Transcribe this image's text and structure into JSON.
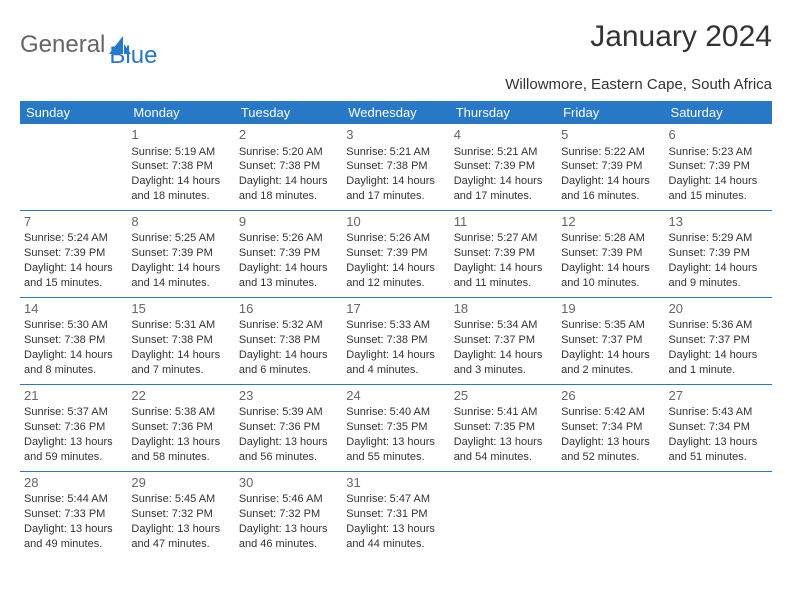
{
  "brand": {
    "part1": "General",
    "part2": "Blue"
  },
  "title": "January 2024",
  "location": "Willowmore, Eastern Cape, South Africa",
  "colors": {
    "accent": "#2878c8",
    "text": "#333333",
    "muted": "#666666"
  },
  "day_headers": [
    "Sunday",
    "Monday",
    "Tuesday",
    "Wednesday",
    "Thursday",
    "Friday",
    "Saturday"
  ],
  "weeks": [
    [
      null,
      {
        "d": "1",
        "sr": "Sunrise: 5:19 AM",
        "ss": "Sunset: 7:38 PM",
        "dl": "Daylight: 14 hours and 18 minutes."
      },
      {
        "d": "2",
        "sr": "Sunrise: 5:20 AM",
        "ss": "Sunset: 7:38 PM",
        "dl": "Daylight: 14 hours and 18 minutes."
      },
      {
        "d": "3",
        "sr": "Sunrise: 5:21 AM",
        "ss": "Sunset: 7:38 PM",
        "dl": "Daylight: 14 hours and 17 minutes."
      },
      {
        "d": "4",
        "sr": "Sunrise: 5:21 AM",
        "ss": "Sunset: 7:39 PM",
        "dl": "Daylight: 14 hours and 17 minutes."
      },
      {
        "d": "5",
        "sr": "Sunrise: 5:22 AM",
        "ss": "Sunset: 7:39 PM",
        "dl": "Daylight: 14 hours and 16 minutes."
      },
      {
        "d": "6",
        "sr": "Sunrise: 5:23 AM",
        "ss": "Sunset: 7:39 PM",
        "dl": "Daylight: 14 hours and 15 minutes."
      }
    ],
    [
      {
        "d": "7",
        "sr": "Sunrise: 5:24 AM",
        "ss": "Sunset: 7:39 PM",
        "dl": "Daylight: 14 hours and 15 minutes."
      },
      {
        "d": "8",
        "sr": "Sunrise: 5:25 AM",
        "ss": "Sunset: 7:39 PM",
        "dl": "Daylight: 14 hours and 14 minutes."
      },
      {
        "d": "9",
        "sr": "Sunrise: 5:26 AM",
        "ss": "Sunset: 7:39 PM",
        "dl": "Daylight: 14 hours and 13 minutes."
      },
      {
        "d": "10",
        "sr": "Sunrise: 5:26 AM",
        "ss": "Sunset: 7:39 PM",
        "dl": "Daylight: 14 hours and 12 minutes."
      },
      {
        "d": "11",
        "sr": "Sunrise: 5:27 AM",
        "ss": "Sunset: 7:39 PM",
        "dl": "Daylight: 14 hours and 11 minutes."
      },
      {
        "d": "12",
        "sr": "Sunrise: 5:28 AM",
        "ss": "Sunset: 7:39 PM",
        "dl": "Daylight: 14 hours and 10 minutes."
      },
      {
        "d": "13",
        "sr": "Sunrise: 5:29 AM",
        "ss": "Sunset: 7:39 PM",
        "dl": "Daylight: 14 hours and 9 minutes."
      }
    ],
    [
      {
        "d": "14",
        "sr": "Sunrise: 5:30 AM",
        "ss": "Sunset: 7:38 PM",
        "dl": "Daylight: 14 hours and 8 minutes."
      },
      {
        "d": "15",
        "sr": "Sunrise: 5:31 AM",
        "ss": "Sunset: 7:38 PM",
        "dl": "Daylight: 14 hours and 7 minutes."
      },
      {
        "d": "16",
        "sr": "Sunrise: 5:32 AM",
        "ss": "Sunset: 7:38 PM",
        "dl": "Daylight: 14 hours and 6 minutes."
      },
      {
        "d": "17",
        "sr": "Sunrise: 5:33 AM",
        "ss": "Sunset: 7:38 PM",
        "dl": "Daylight: 14 hours and 4 minutes."
      },
      {
        "d": "18",
        "sr": "Sunrise: 5:34 AM",
        "ss": "Sunset: 7:37 PM",
        "dl": "Daylight: 14 hours and 3 minutes."
      },
      {
        "d": "19",
        "sr": "Sunrise: 5:35 AM",
        "ss": "Sunset: 7:37 PM",
        "dl": "Daylight: 14 hours and 2 minutes."
      },
      {
        "d": "20",
        "sr": "Sunrise: 5:36 AM",
        "ss": "Sunset: 7:37 PM",
        "dl": "Daylight: 14 hours and 1 minute."
      }
    ],
    [
      {
        "d": "21",
        "sr": "Sunrise: 5:37 AM",
        "ss": "Sunset: 7:36 PM",
        "dl": "Daylight: 13 hours and 59 minutes."
      },
      {
        "d": "22",
        "sr": "Sunrise: 5:38 AM",
        "ss": "Sunset: 7:36 PM",
        "dl": "Daylight: 13 hours and 58 minutes."
      },
      {
        "d": "23",
        "sr": "Sunrise: 5:39 AM",
        "ss": "Sunset: 7:36 PM",
        "dl": "Daylight: 13 hours and 56 minutes."
      },
      {
        "d": "24",
        "sr": "Sunrise: 5:40 AM",
        "ss": "Sunset: 7:35 PM",
        "dl": "Daylight: 13 hours and 55 minutes."
      },
      {
        "d": "25",
        "sr": "Sunrise: 5:41 AM",
        "ss": "Sunset: 7:35 PM",
        "dl": "Daylight: 13 hours and 54 minutes."
      },
      {
        "d": "26",
        "sr": "Sunrise: 5:42 AM",
        "ss": "Sunset: 7:34 PM",
        "dl": "Daylight: 13 hours and 52 minutes."
      },
      {
        "d": "27",
        "sr": "Sunrise: 5:43 AM",
        "ss": "Sunset: 7:34 PM",
        "dl": "Daylight: 13 hours and 51 minutes."
      }
    ],
    [
      {
        "d": "28",
        "sr": "Sunrise: 5:44 AM",
        "ss": "Sunset: 7:33 PM",
        "dl": "Daylight: 13 hours and 49 minutes."
      },
      {
        "d": "29",
        "sr": "Sunrise: 5:45 AM",
        "ss": "Sunset: 7:32 PM",
        "dl": "Daylight: 13 hours and 47 minutes."
      },
      {
        "d": "30",
        "sr": "Sunrise: 5:46 AM",
        "ss": "Sunset: 7:32 PM",
        "dl": "Daylight: 13 hours and 46 minutes."
      },
      {
        "d": "31",
        "sr": "Sunrise: 5:47 AM",
        "ss": "Sunset: 7:31 PM",
        "dl": "Daylight: 13 hours and 44 minutes."
      },
      null,
      null,
      null
    ]
  ]
}
